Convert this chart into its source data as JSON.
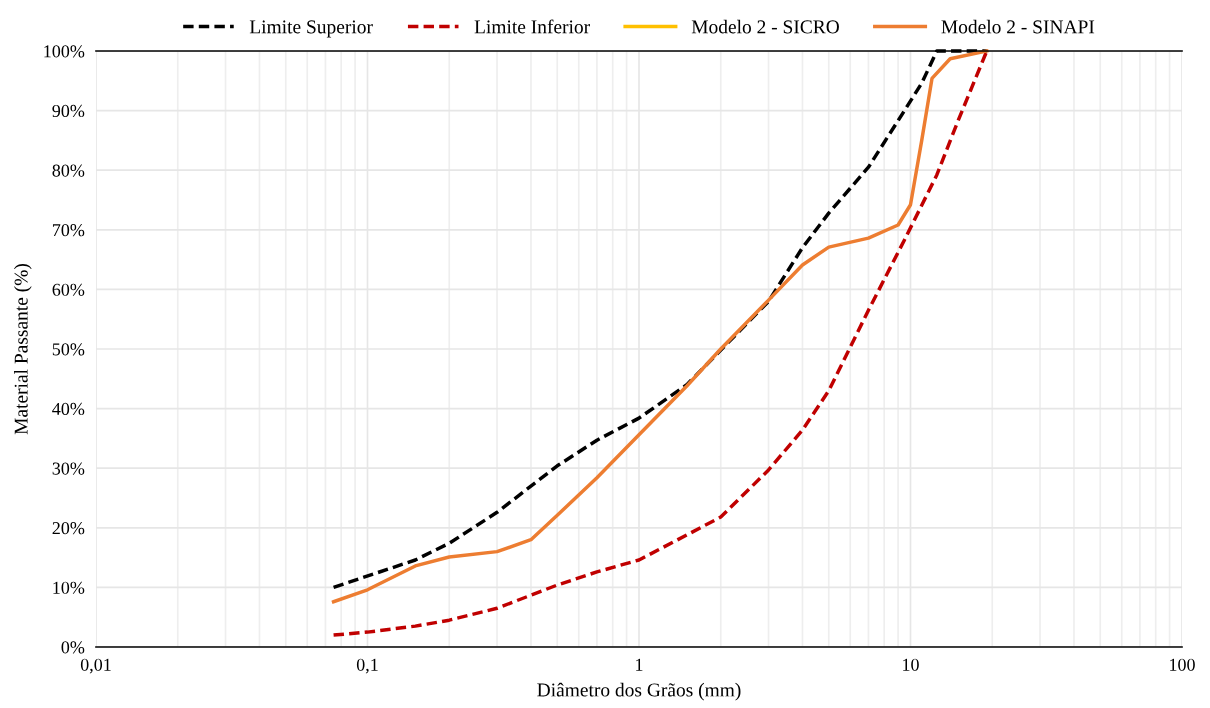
{
  "chart_data": {
    "type": "line",
    "xlabel": "Diâmetro dos Grãos (mm)",
    "ylabel": "Material Passante (%)",
    "series": [
      {
        "name": "Limite Superior",
        "color": "#000000",
        "line_style": "dashed",
        "x": [
          0.075,
          0.15,
          0.2,
          0.3,
          0.5,
          0.7,
          1,
          1.5,
          2,
          3,
          4,
          5,
          7,
          9.5,
          11,
          12.5,
          19.1
        ],
        "values": [
          10,
          14.6,
          17.4,
          22.6,
          30.4,
          34.7,
          38.4,
          44,
          null,
          58,
          67,
          72.8,
          80.5,
          90,
          94.6,
          100,
          100
        ]
      },
      {
        "name": "Limite Inferior",
        "color": "#c00000",
        "line_style": "dashed",
        "x": [
          0.075,
          0.1,
          0.15,
          0.2,
          0.3,
          0.5,
          0.7,
          1,
          1.5,
          2,
          3,
          4,
          5,
          7,
          9.5,
          12.5,
          15,
          19.1
        ],
        "values": [
          2,
          2.5,
          3.5,
          4.5,
          6.5,
          10.4,
          12.6,
          14.6,
          18.8,
          21.8,
          29.7,
          36.4,
          43,
          56.5,
          68.3,
          79.2,
          88.4,
          100
        ]
      },
      {
        "name": "Modelo 2 - SICRO",
        "color": "#ffc000",
        "line_style": "solid"
      },
      {
        "name": "Modelo 2 - SINAPI",
        "color": "#ed7d31",
        "line_style": "solid",
        "x": [
          0.075,
          0.1,
          0.15,
          0.2,
          0.3,
          0.4,
          0.5,
          0.7,
          1,
          1.5,
          2,
          3,
          4,
          5,
          7,
          9,
          10,
          11,
          12,
          14,
          19.1
        ],
        "values": [
          7.6,
          9.6,
          13.6,
          15.1,
          16,
          18,
          22.1,
          28.4,
          35.6,
          43.8,
          50,
          58.2,
          64.1,
          67.1,
          68.6,
          70.8,
          74.2,
          85,
          95.4,
          98.7,
          100
        ]
      }
    ],
    "log": "x",
    "grid": true,
    "legend": "top",
    "xlim": [
      0.01,
      100
    ],
    "xticks": [
      {
        "value": 0.01,
        "label": "0,01"
      },
      {
        "value": 0.1,
        "label": "0,1"
      },
      1,
      10,
      100
    ],
    "ylim": [
      0,
      100
    ],
    "yticks": [
      {
        "value": 0,
        "label": "0%"
      },
      {
        "value": 10,
        "label": "10%"
      },
      {
        "value": 20,
        "label": "20%"
      },
      {
        "value": 30,
        "label": "30%"
      },
      {
        "value": 40,
        "label": "40%"
      },
      {
        "value": 50,
        "label": "50%"
      },
      {
        "value": 60,
        "label": "60%"
      },
      {
        "value": 70,
        "label": "70%"
      },
      {
        "value": 80,
        "label": "80%"
      },
      {
        "value": 90,
        "label": "90%"
      },
      {
        "value": 100,
        "label": "100%"
      }
    ]
  }
}
